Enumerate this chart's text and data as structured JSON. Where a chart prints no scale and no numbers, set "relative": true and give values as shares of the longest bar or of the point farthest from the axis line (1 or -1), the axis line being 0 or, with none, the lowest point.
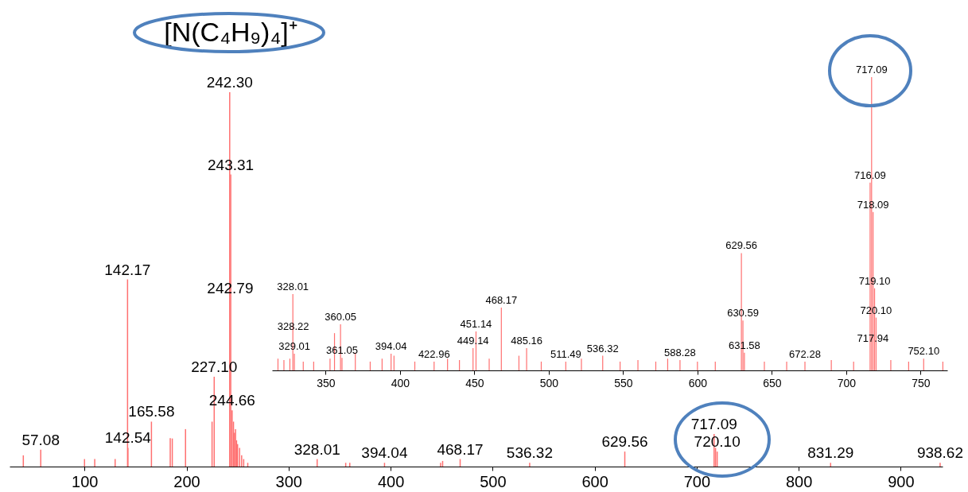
{
  "chart_data": [
    {
      "type": "bar",
      "title": "[N(C₄H₉)₄]⁺",
      "relative": true,
      "xlim": [
        26.5,
        941
      ],
      "xticks": [
        100,
        200,
        300,
        400,
        500,
        600,
        700,
        800,
        900
      ],
      "grid": false,
      "color": "#ff7070",
      "x": [
        40,
        57.08,
        100,
        110,
        130,
        142.17,
        142.54,
        165.58,
        184,
        186,
        199,
        225,
        227.1,
        242.3,
        243.31,
        244.66,
        246,
        247,
        248,
        249,
        250,
        252,
        254,
        256,
        260,
        328.01,
        356,
        360,
        394.04,
        449,
        451,
        468.17,
        536.32,
        629.56,
        717.09,
        718.5,
        720.1,
        831.29,
        938.62
      ],
      "values": [
        0.03,
        0.045,
        0.02,
        0.02,
        0.02,
        0.5,
        0.05,
        0.12,
        0.076,
        0.075,
        0.1,
        0.12,
        0.24,
        1,
        0.78,
        0.15,
        0.12,
        0.09,
        0.1,
        0.07,
        0.06,
        0.05,
        0.03,
        0.02,
        0.01,
        0.02,
        0.01,
        0.01,
        0.01,
        0.01,
        0.015,
        0.02,
        0.01,
        0.04,
        0.087,
        0.05,
        0.04,
        0.01,
        0.01
      ],
      "annotations": [
        {
          "text": "57.08",
          "x": 57.08,
          "y": 0.045
        },
        {
          "text": "142.17",
          "x": 142.17,
          "y": 0.5
        },
        {
          "text": "142.54",
          "x": 142.54,
          "y": 0.05
        },
        {
          "text": "165.58",
          "x": 165.58,
          "y": 0.12
        },
        {
          "text": "227.10",
          "x": 227.1,
          "y": 0.24
        },
        {
          "text": "242.30",
          "x": 242.3,
          "y": 1
        },
        {
          "text": "243.31",
          "x": 243.31,
          "y": 0.78
        },
        {
          "text": "242.79",
          "x": 242.79,
          "y": 0.45
        },
        {
          "text": "244.66",
          "x": 244.66,
          "y": 0.15
        },
        {
          "text": "328.01",
          "x": 328.01,
          "y": 0.02
        },
        {
          "text": "394.04",
          "x": 394.04,
          "y": 0.01
        },
        {
          "text": "468.17",
          "x": 468.17,
          "y": 0.02
        },
        {
          "text": "536.32",
          "x": 536.32,
          "y": 0.01
        },
        {
          "text": "629.56",
          "x": 629.56,
          "y": 0.04
        },
        {
          "text": "717.09",
          "x": 717.09,
          "y": 0.087
        },
        {
          "text": "720.10",
          "x": 720.1,
          "y": 0.04
        },
        {
          "text": "831.29",
          "x": 831.29,
          "y": 0.01
        },
        {
          "text": "938.62",
          "x": 938.62,
          "y": 0.01
        }
      ]
    },
    {
      "type": "bar",
      "relative": true,
      "xlim": [
        314,
        768
      ],
      "xticks": [
        350,
        400,
        450,
        500,
        550,
        600,
        650,
        700,
        750
      ],
      "grid": false,
      "color": "#ff7070",
      "x": [
        318,
        322,
        326,
        328.01,
        328.22,
        329.01,
        335,
        342,
        353,
        356,
        360.05,
        361.05,
        370,
        380,
        388,
        394.04,
        396,
        410,
        422.96,
        432,
        440,
        449.14,
        451.14,
        460,
        468.17,
        480,
        485.16,
        495,
        511.49,
        522,
        536.32,
        548,
        560,
        572,
        580,
        588.28,
        600,
        612,
        629.56,
        630.59,
        631.58,
        645,
        660,
        672.28,
        690,
        705,
        716.09,
        717.09,
        717.94,
        718.09,
        719.1,
        720.1,
        730,
        742,
        752.1,
        765
      ],
      "values": [
        0.04,
        0.035,
        0.04,
        0.26,
        null,
        0.057,
        0.03,
        0.03,
        0.04,
        0.127,
        0.157,
        0.043,
        0.06,
        0.03,
        0.04,
        0.057,
        0.05,
        0.03,
        0.03,
        0.04,
        0.035,
        0.076,
        0.133,
        0.04,
        0.214,
        0.05,
        0.076,
        0.03,
        0.03,
        0.04,
        0.05,
        0.03,
        0.035,
        0.03,
        0.04,
        0.035,
        0.03,
        0.03,
        0.4,
        0.17,
        0.06,
        0.03,
        0.03,
        0.03,
        0.035,
        0.03,
        0.64,
        1,
        null,
        0.54,
        0.28,
        0.18,
        0.035,
        0.03,
        0.04,
        0.03
      ],
      "annotations": [
        {
          "text": "328.01",
          "x": 328.01,
          "y": 0.26
        },
        {
          "text": "328.22",
          "x": 328.22,
          "y": 0.125
        },
        {
          "text": "329.01",
          "x": 329.01,
          "y": 0.057
        },
        {
          "text": "360.05",
          "x": 360.05,
          "y": 0.157
        },
        {
          "text": "361.05",
          "x": 361.05,
          "y": 0.043
        },
        {
          "text": "394.04",
          "x": 394.04,
          "y": 0.057
        },
        {
          "text": "422.96",
          "x": 422.96,
          "y": 0.03
        },
        {
          "text": "449.14",
          "x": 449.14,
          "y": 0.076
        },
        {
          "text": "451.14",
          "x": 451.14,
          "y": 0.133
        },
        {
          "text": "468.17",
          "x": 468.17,
          "y": 0.214
        },
        {
          "text": "485.16",
          "x": 485.16,
          "y": 0.076
        },
        {
          "text": "511.49",
          "x": 511.49,
          "y": 0.03
        },
        {
          "text": "536.32",
          "x": 536.32,
          "y": 0.05
        },
        {
          "text": "588.28",
          "x": 588.28,
          "y": 0.035
        },
        {
          "text": "629.56",
          "x": 629.56,
          "y": 0.4
        },
        {
          "text": "630.59",
          "x": 630.59,
          "y": 0.17
        },
        {
          "text": "631.58",
          "x": 631.58,
          "y": 0.06
        },
        {
          "text": "672.28",
          "x": 672.28,
          "y": 0.03
        },
        {
          "text": "716.09",
          "x": 716.09,
          "y": 0.64
        },
        {
          "text": "717.09",
          "x": 717.09,
          "y": 1
        },
        {
          "text": "718.09",
          "x": 718.09,
          "y": 0.54
        },
        {
          "text": "719.10",
          "x": 719.1,
          "y": 0.28
        },
        {
          "text": "720.10",
          "x": 720.1,
          "y": 0.18
        },
        {
          "text": "717.94",
          "x": 717.94,
          "y": 0.085
        },
        {
          "text": "752.10",
          "x": 752.1,
          "y": 0.04
        }
      ]
    }
  ]
}
